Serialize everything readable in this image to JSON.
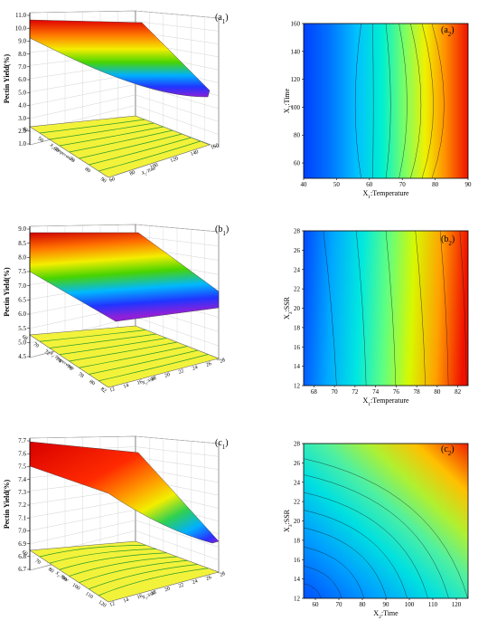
{
  "chart_data": [
    {
      "type": "surface",
      "panel": "a",
      "sub": "1",
      "zlabel": "Pectin Yield(%)",
      "zticks": [
        "11.0",
        "10.0",
        "9.0",
        "8.0",
        "7.0",
        "6.0",
        "5.0",
        "4.0",
        "3.0",
        "2.0",
        "1.0"
      ],
      "xlabel_pre": "X",
      "xlabel_sub": "1",
      "xlabel_post": ":Temperature",
      "ylabel_pre": "X",
      "ylabel_sub": "2",
      "ylabel_post": ":Time",
      "xticks": [
        "40",
        "50",
        "60",
        "70",
        "80",
        "90"
      ],
      "yticks": [
        "60",
        "80",
        "100",
        "120",
        "140",
        "160"
      ]
    },
    {
      "type": "contour",
      "panel": "a",
      "sub": "2",
      "xlabel_pre": "X",
      "xlabel_sub": "1",
      "xlabel_post": ":Temperature",
      "ylabel_pre": "X",
      "ylabel_sub": "2",
      "ylabel_post": ":Time",
      "xticks": [
        "40",
        "50",
        "60",
        "70",
        "80",
        "90"
      ],
      "yticks": [
        "160",
        "140",
        "120",
        "100",
        "80",
        "60"
      ],
      "x_range": [
        40,
        90
      ],
      "y_range": [
        55,
        160
      ]
    },
    {
      "type": "surface",
      "panel": "b",
      "sub": "1",
      "zlabel": "Pectin Yield(%)",
      "zticks": [
        "9.0",
        "8.5",
        "8.0",
        "7.5",
        "7.0",
        "6.5",
        "6.0",
        "5.5",
        "5.0",
        "4.5"
      ],
      "xlabel_pre": "X",
      "xlabel_sub": "1",
      "xlabel_post": ":Temperature",
      "ylabel_pre": "X",
      "ylabel_sub": "3",
      "ylabel_post": ":SSR",
      "xticks": [
        "68",
        "70",
        "72",
        "74",
        "76",
        "78",
        "80",
        "82"
      ],
      "yticks": [
        "12",
        "14",
        "16",
        "18",
        "20",
        "22",
        "24",
        "26",
        "28"
      ]
    },
    {
      "type": "contour",
      "panel": "b",
      "sub": "2",
      "xlabel_pre": "X",
      "xlabel_sub": "1",
      "xlabel_post": ":Temperature",
      "ylabel_pre": "X",
      "ylabel_sub": "3",
      "ylabel_post": ":SSR",
      "xticks": [
        "68",
        "70",
        "72",
        "74",
        "76",
        "78",
        "80",
        "82"
      ],
      "yticks": [
        "28",
        "26",
        "24",
        "22",
        "20",
        "18",
        "16",
        "14",
        "12"
      ],
      "x_range": [
        67,
        83
      ],
      "y_range": [
        12,
        28
      ]
    },
    {
      "type": "surface",
      "panel": "c",
      "sub": "1",
      "zlabel": "Pectin Yield(%)",
      "zticks": [
        "7.7",
        "7.6",
        "7.5",
        "7.4",
        "7.3",
        "7.2",
        "7.1",
        "7.0",
        "6.9",
        "6.8",
        "6.7"
      ],
      "xlabel_pre": "X",
      "xlabel_sub": "2",
      "xlabel_post": ":Time",
      "ylabel_pre": "X",
      "ylabel_sub": "3",
      "ylabel_post": ":SSR",
      "xticks": [
        "60",
        "70",
        "80",
        "90",
        "100",
        "110",
        "120"
      ],
      "yticks": [
        "12",
        "14",
        "16",
        "18",
        "20",
        "22",
        "24",
        "26",
        "28"
      ]
    },
    {
      "type": "contour",
      "panel": "c",
      "sub": "2",
      "xlabel_pre": "X",
      "xlabel_sub": "2",
      "xlabel_post": ":Time",
      "ylabel_pre": "X",
      "ylabel_sub": "3",
      "ylabel_post": ":SSR",
      "xticks": [
        "60",
        "70",
        "80",
        "90",
        "100",
        "110",
        "120"
      ],
      "yticks": [
        "28",
        "26",
        "24",
        "22",
        "20",
        "18",
        "16",
        "14",
        "12"
      ],
      "x_range": [
        52,
        125
      ],
      "y_range": [
        12,
        28
      ]
    }
  ]
}
